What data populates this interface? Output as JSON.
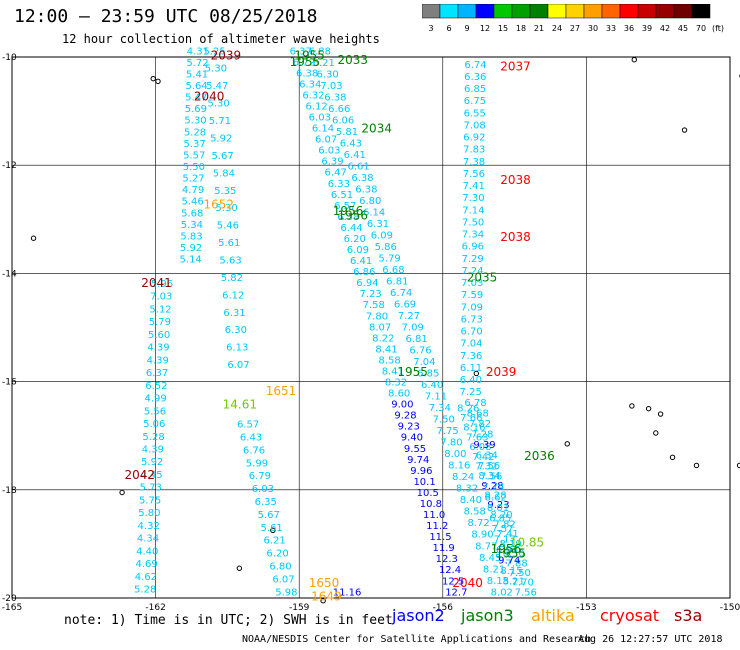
{
  "header": {
    "title": "12:00 – 23:59 UTC 08/25/2018",
    "subtitle": "12 hour collection of altimeter wave heights"
  },
  "colorbar": {
    "unit": "(ft)",
    "labels": [
      "3",
      "6",
      "9",
      "12",
      "15",
      "18",
      "21",
      "24",
      "27",
      "30",
      "33",
      "36",
      "39",
      "42",
      "45",
      "70"
    ],
    "colors": [
      "#7f7f7f",
      "#00e5ff",
      "#00b4ff",
      "#0000ff",
      "#00c800",
      "#00a000",
      "#008000",
      "#ffff00",
      "#ffd200",
      "#ffa000",
      "#ff6400",
      "#ff0000",
      "#c80000",
      "#960000",
      "#6e0000",
      "#000000"
    ]
  },
  "axes": {
    "lat_labels": [
      "-10",
      "-12",
      "-14",
      "-16",
      "-18",
      "-20"
    ],
    "lon_labels": [
      "-165",
      "-162",
      "-159",
      "-156",
      "-153",
      "-150"
    ]
  },
  "footer": {
    "note": "note: 1) Time is in UTC; 2) SWH is in feet",
    "legend": [
      {
        "name": "jason2",
        "color": "#0000ff"
      },
      {
        "name": "jason3",
        "color": "#008000"
      },
      {
        "name": "altika",
        "color": "#ffa000"
      },
      {
        "name": "cryosat",
        "color": "#ff0000"
      },
      {
        "name": "s3a",
        "color": "#960000"
      }
    ],
    "credit": "NOAA/NESDIS Center for Satellite Applications and Research",
    "timestamp": "Aug 26 12:27:57 UTC 2018"
  },
  "tracks": [
    {
      "id": "s3a-2039",
      "color": "#00c8ff",
      "lon0": -161.35,
      "lat0": -9.95,
      "lon1": -161.5,
      "lat1": -13.8,
      "step": 0.21,
      "values": [
        "4.31",
        "5.72",
        "5.41",
        "5.64",
        "5.47",
        "5.69",
        "5.30",
        "5.28",
        "5.37",
        "5.57",
        "5.50",
        "5.27",
        "4.79",
        "5.46",
        "5.68",
        "5.34",
        "5.83",
        "5.92",
        "5.14"
      ]
    },
    {
      "id": "s3a-2039b",
      "color": "#00c8ff",
      "lon0": -161.0,
      "lat0": -9.95,
      "lon1": -160.5,
      "lat1": -15.75,
      "step": 0.22,
      "values": [
        "5.25",
        "5.30",
        "5.47",
        "5.30",
        "5.71",
        "5.92",
        "5.67",
        "5.84",
        "5.35",
        "5.30",
        "5.46",
        "5.61",
        "5.63",
        "5.82",
        "6.12",
        "6.31",
        "6.30",
        "6.13",
        "6.07"
      ]
    },
    {
      "id": "s3a-2041",
      "color": "#00c8ff",
      "lon0": -162.1,
      "lat0": -14.25,
      "lon1": -162.45,
      "lat1": -19.9,
      "step": 0.24,
      "values": [
        "5.96",
        "7.03",
        "5.12",
        "5.79",
        "5.60",
        "4.39",
        "4.39",
        "6.37",
        "6.52",
        "4.99",
        "5.56",
        "5.06",
        "5.28",
        "4.39",
        "5.92",
        "4.45",
        "5.73",
        "5.75",
        "5.80",
        "4.32",
        "4.34",
        "4.40",
        "4.69",
        "4.62",
        "5.28"
      ]
    },
    {
      "id": "s3a-1651",
      "color": "#00c8ff",
      "lon0": -160.3,
      "lat0": -16.85,
      "lon1": -159.5,
      "lat1": -19.95,
      "step": 0.24,
      "values": [
        "6.57",
        "6.43",
        "6.76",
        "5.99",
        "6.79",
        "6.03",
        "6.35",
        "5.67",
        "5.61",
        "6.21",
        "6.20",
        "6.80",
        "6.07",
        "5.98"
      ]
    },
    {
      "id": "jason3-1955",
      "color": "#00c8ff",
      "lon0": -159.2,
      "lat0": -9.95,
      "lon1": -155.95,
      "lat1": -19.95,
      "step": 0.2,
      "values": [
        "6.37",
        "6.72",
        "6.38",
        "6.34",
        "6.32",
        "6.12",
        "6.03",
        "6.14",
        "6.07",
        "6.03",
        "6.39",
        "6.47",
        "6.33",
        "6.51",
        "6.57",
        "6.38",
        "6.44",
        "6.20",
        "6.09",
        "6.41",
        "6.86",
        "6.94",
        "7.23",
        "7.58",
        "7.80",
        "8.07",
        "8.22",
        "8.41",
        "8.58",
        "8.41",
        "8.32",
        "8.60",
        "9.00",
        "9.28",
        "9.23",
        "9.40",
        "9.55",
        "9.74",
        "9.96",
        "10.1",
        "10.5",
        "10.8",
        "11.0",
        "11.2",
        "11.5",
        "11.9",
        "12.3",
        "12.4",
        "12.5",
        "12.7"
      ]
    },
    {
      "id": "jason3-1956",
      "color": "#00c8ff",
      "lon0": -158.8,
      "lat0": -9.95,
      "lon1": -155.0,
      "lat1": -19.95,
      "step": 0.21,
      "values": [
        "6.88",
        "6.21",
        "6.30",
        "7.03",
        "6.38",
        "6.66",
        "6.06",
        "5.81",
        "6.43",
        "6.41",
        "6.61",
        "6.38",
        "6.38",
        "6.80",
        "6.14",
        "6.31",
        "6.09",
        "5.86",
        "5.79",
        "6.68",
        "6.81",
        "6.74",
        "6.69",
        "7.27",
        "7.09",
        "6.81",
        "6.76",
        "7.04",
        "6.85",
        "6.40",
        "7.11",
        "7.34",
        "7.50",
        "7.75",
        "7.80",
        "8.00",
        "8.16",
        "8.24",
        "8.32",
        "8.40",
        "8.58",
        "8.72",
        "8.90",
        "8.77",
        "8.45",
        "8.21",
        "8.15",
        "8.02"
      ]
    },
    {
      "id": "cryosat-2037",
      "color": "#00c8ff",
      "lon0": -155.55,
      "lat0": -10.2,
      "lon1": -155.65,
      "lat1": -16.25,
      "step": 0.21,
      "values": [
        "6.74",
        "6.36",
        "6.85",
        "6.75",
        "6.55",
        "7.08",
        "6.92",
        "7.83",
        "7.38",
        "7.56",
        "7.41",
        "7.30",
        "7.14",
        "7.50",
        "7.34",
        "6.96",
        "7.29",
        "7.24",
        "7.03",
        "7.59",
        "7.09",
        "6.73",
        "6.70",
        "7.04",
        "7.36",
        "6.11",
        "6.40",
        "7.25"
      ]
    },
    {
      "id": "cryosat-2036",
      "color": "#00c8ff",
      "lon0": -155.7,
      "lat0": -16.55,
      "lon1": -154.5,
      "lat1": -19.95,
      "step": 0.22,
      "values": [
        "8.26",
        "7.66",
        "8.16",
        "7.63",
        "6.08",
        "7.42",
        "7.32",
        "8.34",
        "9.28",
        "8.28",
        "9.23",
        "8.20",
        "7.82",
        "7.41",
        "8.19",
        "6.30",
        "7.88",
        "7.50",
        "7.70",
        "7.56"
      ]
    },
    {
      "id": "cryosat-2036b",
      "color": "#00c8ff",
      "lon0": -155.55,
      "lat0": -16.45,
      "lon1": -154.75,
      "lat1": -19.75,
      "step": 0.22,
      "values": [
        "6.78",
        "8.68",
        "7.82",
        "7.28",
        "9.39",
        "6.34",
        "7.56",
        "7.56",
        "7.74",
        "8.62",
        "8.01",
        "6.85",
        "7.57",
        "7.17",
        "6.97",
        "9.74",
        "8.15",
        "8.21"
      ]
    },
    {
      "id": "altika-1650",
      "color": "#00c8ff",
      "lon0": -158.3,
      "lat0": -19.95,
      "lon1": -158.3,
      "lat1": -19.95,
      "step": 0.2,
      "values": [
        "11.16"
      ]
    }
  ],
  "labels": [
    {
      "text": "2039",
      "color": "#960000",
      "lon": -160.85,
      "lat": -10.05
    },
    {
      "text": "1955",
      "color": "#008000",
      "lon": -159.1,
      "lat": -10.05
    },
    {
      "text": "1955",
      "color": "#008000",
      "lon": -159.2,
      "lat": -10.17
    },
    {
      "text": "2033",
      "color": "#008000",
      "lon": -158.2,
      "lat": -10.13
    },
    {
      "text": "2037",
      "color": "#ff0000",
      "lon": -154.8,
      "lat": -10.25
    },
    {
      "text": "2040",
      "color": "#960000",
      "lon": -161.2,
      "lat": -10.8
    },
    {
      "text": "2034",
      "color": "#008000",
      "lon": -157.7,
      "lat": -11.4
    },
    {
      "text": "2038",
      "color": "#ff0000",
      "lon": -154.8,
      "lat": -12.35
    },
    {
      "text": "1652",
      "color": "#ffa000",
      "lon": -161.0,
      "lat": -12.8
    },
    {
      "text": "1956",
      "color": "#008000",
      "lon": -158.3,
      "lat": -12.92
    },
    {
      "text": "1956",
      "color": "#008000",
      "lon": -158.2,
      "lat": -13.0
    },
    {
      "text": "2038",
      "color": "#ff0000",
      "lon": -154.8,
      "lat": -13.4
    },
    {
      "text": "2035",
      "color": "#008000",
      "lon": -155.5,
      "lat": -14.15
    },
    {
      "text": "2041",
      "color": "#960000",
      "lon": -162.3,
      "lat": -14.25
    },
    {
      "text": "1955",
      "color": "#008000",
      "lon": -156.95,
      "lat": -15.9
    },
    {
      "text": "2039",
      "color": "#ff0000",
      "lon": -155.1,
      "lat": -15.9
    },
    {
      "text": "1651",
      "color": "#ffa000",
      "lon": -159.7,
      "lat": -16.25
    },
    {
      "text": "14.61",
      "color": "#76c800",
      "lon": -160.6,
      "lat": -16.5
    },
    {
      "text": "2036",
      "color": "#008000",
      "lon": -154.3,
      "lat": -17.45
    },
    {
      "text": "2042",
      "color": "#960000",
      "lon": -162.65,
      "lat": -17.8
    },
    {
      "text": "10.85",
      "color": "#76c800",
      "lon": -154.6,
      "lat": -19.05
    },
    {
      "text": "1956",
      "color": "#008000",
      "lon": -155.0,
      "lat": -19.17
    },
    {
      "text": "1955",
      "color": "#008000",
      "lon": -154.9,
      "lat": -19.25
    },
    {
      "text": "2040",
      "color": "#ff0000",
      "lon": -155.8,
      "lat": -19.8
    },
    {
      "text": "1650",
      "color": "#ffa000",
      "lon": -158.8,
      "lat": -19.8
    },
    {
      "text": "1649",
      "color": "#ffa000",
      "lon": -158.75,
      "lat": -20.05
    }
  ]
}
